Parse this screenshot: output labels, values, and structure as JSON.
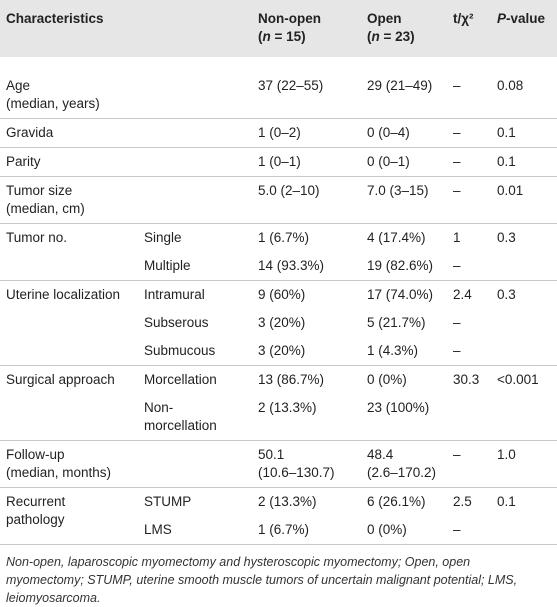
{
  "header": {
    "characteristics": "Characteristics",
    "non_open": {
      "name": "Non-open",
      "n": [
        "(",
        "n",
        " = 15)"
      ]
    },
    "open": {
      "name": "Open",
      "n": [
        "(",
        "n",
        " = 23)"
      ]
    },
    "stat": "t/χ²",
    "p": [
      "P",
      "-value"
    ]
  },
  "groups": [
    {
      "label": [
        "Age",
        "(median, years)"
      ],
      "rows": [
        {
          "non_open": [
            "37 (22–55)"
          ],
          "open": [
            "29 (21–49)"
          ],
          "stat": "–",
          "p": "0.08"
        }
      ]
    },
    {
      "label": [
        "Gravida"
      ],
      "rows": [
        {
          "non_open": [
            "1 (0–2)"
          ],
          "open": [
            "0 (0–4)"
          ],
          "stat": "–",
          "p": "0.1"
        }
      ]
    },
    {
      "label": [
        "Parity"
      ],
      "rows": [
        {
          "non_open": [
            "1 (0–1)"
          ],
          "open": [
            "0 (0–1)"
          ],
          "stat": "–",
          "p": "0.1"
        }
      ]
    },
    {
      "label": [
        "Tumor size",
        "(median, cm)"
      ],
      "rows": [
        {
          "non_open": [
            "5.0 (2–10)"
          ],
          "open": [
            "7.0 (3–15)"
          ],
          "stat": "–",
          "p": "0.01"
        }
      ]
    },
    {
      "label": [
        "Tumor no."
      ],
      "rows": [
        {
          "sub": [
            "Single"
          ],
          "non_open": [
            "1 (6.7%)"
          ],
          "open": [
            "4 (17.4%)"
          ],
          "stat": "1",
          "p": "0.3"
        },
        {
          "sub": [
            "Multiple"
          ],
          "non_open": [
            "14 (93.3%)"
          ],
          "open": [
            "19 (82.6%)"
          ],
          "stat": "–"
        }
      ]
    },
    {
      "label": [
        "Uterine localization"
      ],
      "rows": [
        {
          "sub": [
            "Intramural"
          ],
          "non_open": [
            "9 (60%)"
          ],
          "open": [
            "17 (74.0%)"
          ],
          "stat": "2.4",
          "p": "0.3"
        },
        {
          "sub": [
            "Subserous"
          ],
          "non_open": [
            "3 (20%)"
          ],
          "open": [
            "5 (21.7%)"
          ],
          "stat": "–"
        },
        {
          "sub": [
            "Submucous"
          ],
          "non_open": [
            "3 (20%)"
          ],
          "open": [
            "1 (4.3%)"
          ],
          "stat": "–"
        }
      ]
    },
    {
      "label": [
        "Surgical approach"
      ],
      "rows": [
        {
          "sub": [
            "Morcellation"
          ],
          "non_open": [
            "13 (86.7%)"
          ],
          "open": [
            "0 (0%)"
          ],
          "stat": "30.3",
          "p": "<0.001"
        },
        {
          "sub": [
            "Non-",
            "morcellation"
          ],
          "non_open": [
            "2 (13.3%)"
          ],
          "open": [
            "23 (100%)"
          ]
        }
      ]
    },
    {
      "label": [
        "Follow-up",
        "(median, months)"
      ],
      "rows": [
        {
          "non_open": [
            "50.1",
            "(10.6–130.7)"
          ],
          "open": [
            "48.4",
            "(2.6–170.2)"
          ],
          "stat": "–",
          "p": "1.0"
        }
      ]
    },
    {
      "label": [
        "Recurrent",
        "pathology"
      ],
      "rows": [
        {
          "sub": [
            "STUMP"
          ],
          "non_open": [
            "2 (13.3%)"
          ],
          "open": [
            "6 (26.1%)"
          ],
          "stat": "2.5",
          "p": "0.1"
        },
        {
          "sub": [
            "LMS"
          ],
          "non_open": [
            "1 (6.7%)"
          ],
          "open": [
            "0 (0%)"
          ],
          "stat": "–"
        }
      ]
    }
  ],
  "footnote": "Non-open, laparoscopic myomectomy and hysteroscopic myomectomy; Open, open myomectomy; STUMP, uterine smooth muscle tumors of uncertain malignant potential; LMS, leiomyosarcoma."
}
